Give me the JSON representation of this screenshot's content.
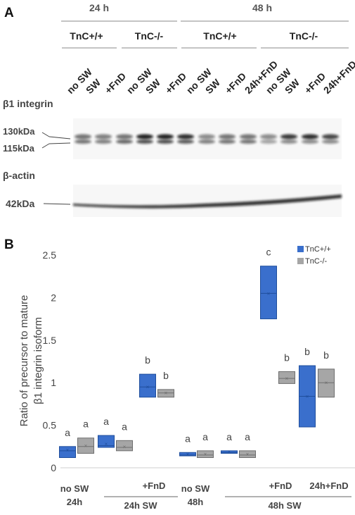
{
  "panel_a": {
    "letter": "A",
    "time_headers": [
      "24 h",
      "48 h"
    ],
    "genotype_headers": [
      "TnC+/+",
      "TnC-/-",
      "TnC+/+",
      "TnC-/-"
    ],
    "lanes": [
      "no SW",
      "SW",
      "+FnD",
      "no SW",
      "SW",
      "+FnD",
      "no SW",
      "SW",
      "+FnD",
      "24h+FnD",
      "no SW",
      "SW",
      "+FnD",
      "24h+FnD"
    ],
    "integrin_blot": {
      "label": "β1 integrin",
      "markers": [
        "130kDa",
        "115kDa"
      ]
    },
    "actin_blot": {
      "label": "β-actin",
      "markers": [
        "42kDa"
      ]
    }
  },
  "panel_b": {
    "letter": "B",
    "chart_data": {
      "type": "box",
      "ylabel": [
        "Ratio of precursor to mature",
        "β1 integrin isoform"
      ],
      "ylim": [
        0,
        2.5
      ],
      "yticks": [
        "0",
        "0.5",
        "1",
        "1.5",
        "2",
        "2.5"
      ],
      "legend": [
        "TnC+/+",
        "TnC-/-"
      ],
      "series_colors": {
        "TnC+/+": "#3a6fcc",
        "TnC-/-": "#a6a6a6"
      },
      "groups": [
        {
          "boxes": [
            {
              "series": "TnC+/+",
              "q1": 0.12,
              "median": 0.2,
              "q3": 0.25,
              "mean": 0.21,
              "letter": "a"
            },
            {
              "series": "TnC-/-",
              "q1": 0.17,
              "median": 0.25,
              "q3": 0.35,
              "mean": 0.26,
              "letter": "a"
            }
          ]
        },
        {
          "boxes": [
            {
              "series": "TnC+/+",
              "q1": 0.24,
              "median": 0.26,
              "q3": 0.38,
              "mean": 0.28,
              "letter": "a"
            },
            {
              "series": "TnC-/-",
              "q1": 0.2,
              "median": 0.24,
              "q3": 0.32,
              "mean": 0.25,
              "letter": "a"
            }
          ]
        },
        {
          "boxes": [
            {
              "series": "TnC+/+",
              "q1": 0.83,
              "median": 0.95,
              "q3": 1.1,
              "mean": 0.95,
              "letter": "b"
            },
            {
              "series": "TnC-/-",
              "q1": 0.83,
              "median": 0.88,
              "q3": 0.92,
              "mean": 0.88,
              "letter": "b"
            }
          ]
        },
        {
          "boxes": [
            {
              "series": "TnC+/+",
              "q1": 0.14,
              "median": 0.15,
              "q3": 0.18,
              "mean": 0.16,
              "letter": "a"
            },
            {
              "series": "TnC-/-",
              "q1": 0.12,
              "median": 0.15,
              "q3": 0.2,
              "mean": 0.16,
              "letter": "a"
            }
          ]
        },
        {
          "boxes": [
            {
              "series": "TnC+/+",
              "q1": 0.17,
              "median": 0.18,
              "q3": 0.2,
              "mean": 0.19,
              "letter": "a"
            },
            {
              "series": "TnC-/-",
              "q1": 0.12,
              "median": 0.15,
              "q3": 0.2,
              "mean": 0.16,
              "letter": "a"
            }
          ]
        },
        {
          "boxes": [
            {
              "series": "TnC+/+",
              "q1": 1.75,
              "median": 2.05,
              "q3": 2.37,
              "mean": 2.05,
              "letter": "c"
            },
            {
              "series": "TnC-/-",
              "q1": 0.99,
              "median": 1.05,
              "q3": 1.13,
              "mean": 1.05,
              "letter": "b"
            }
          ]
        },
        {
          "boxes": [
            {
              "series": "TnC+/+",
              "q1": 0.48,
              "median": 0.84,
              "q3": 1.2,
              "mean": 0.84,
              "letter": "b"
            },
            {
              "series": "TnC-/-",
              "q1": 0.83,
              "median": 1.0,
              "q3": 1.16,
              "mean": 1.0,
              "letter": "b"
            }
          ]
        }
      ],
      "xlabels": {
        "no_sw_24h": [
          "no SW",
          "24h"
        ],
        "fnd_24h": "+FnD",
        "sw_24h": "24h SW",
        "no_sw_48h": [
          "no SW",
          "48h"
        ],
        "fnd_48h": "+FnD",
        "fnd24_48h": "24h+FnD",
        "sw_48h": "48h SW"
      }
    }
  }
}
